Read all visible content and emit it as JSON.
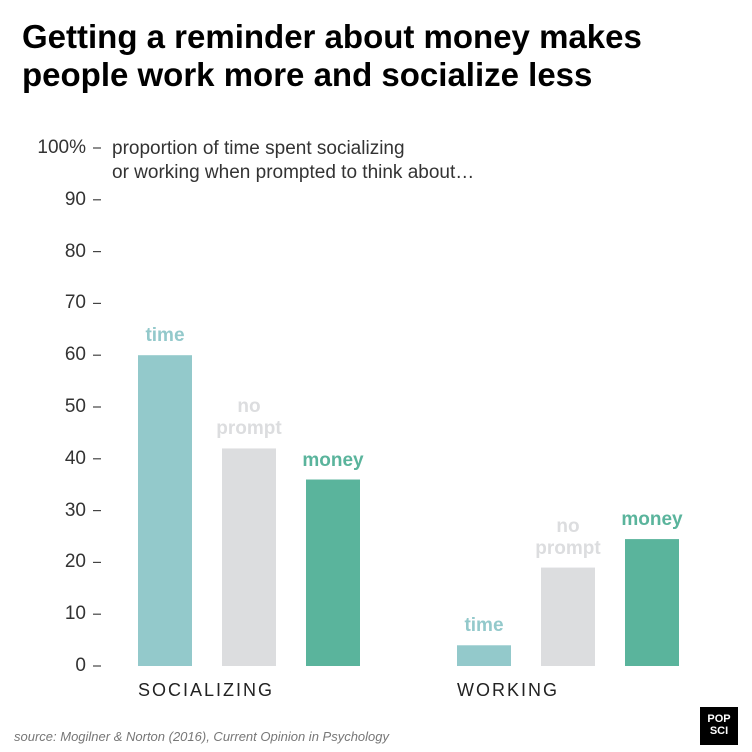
{
  "chart_data": {
    "type": "bar",
    "title": "Getting a reminder about money makes\npeople work more and socialize less",
    "y_axis_label": "proportion of time spent socializing\nor working when prompted to think about…",
    "categories": [
      "SOCIALIZING",
      "WORKING"
    ],
    "series": [
      {
        "name": "time",
        "color": "#93c9cb",
        "values": [
          60,
          4
        ]
      },
      {
        "name": "no prompt",
        "color": "#dcdddf",
        "values": [
          42,
          19
        ]
      },
      {
        "name": "money",
        "color": "#5ab49c",
        "values": [
          36,
          24.5
        ]
      }
    ],
    "ylim": [
      0,
      100
    ],
    "yticks": [
      0,
      10,
      20,
      30,
      40,
      50,
      60,
      70,
      80,
      90,
      {
        "value": 100,
        "label": "100%"
      }
    ],
    "source": "source: Mogilner & Norton (2016), Current Opinion in Psychology",
    "logo": "POP SCI"
  }
}
